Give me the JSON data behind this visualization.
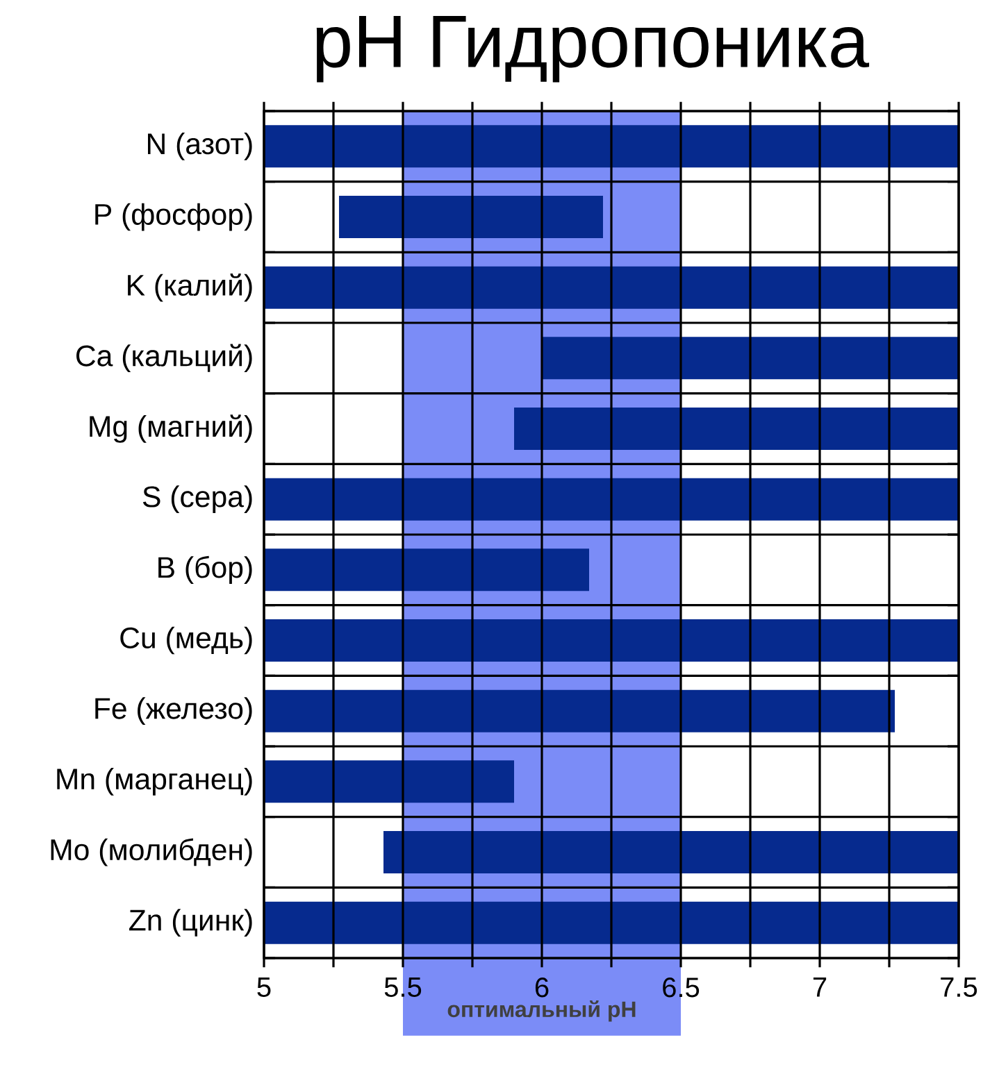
{
  "chart_data": {
    "type": "bar",
    "orientation": "horizontal",
    "title": "pH Гидропоника",
    "categories": [
      "N (азот)",
      "P (фосфор)",
      "K (калий)",
      "Ca (кальций)",
      "Mg (магний)",
      "S (сера)",
      "B (бор)",
      "Cu (медь)",
      "Fe (железо)",
      "Mn (марганец)",
      "Mo (молибден)",
      "Zn (цинк)"
    ],
    "base": [
      5,
      5.27,
      5,
      6,
      5.9,
      5,
      5,
      5,
      5,
      5,
      5.43,
      5
    ],
    "values": [
      2.5,
      0.95,
      2.5,
      1.5,
      1.6,
      2.5,
      1.17,
      2.5,
      2.27,
      0.9,
      2.07,
      2.5
    ],
    "color": "#062a8e",
    "xlim": [
      5,
      7.5
    ],
    "xticks": [
      5,
      {
        "value": 5.25,
        "label": null
      },
      5.5,
      {
        "value": 5.75,
        "label": null
      },
      6,
      {
        "value": 6.25,
        "label": null
      },
      6.5,
      {
        "value": 6.75,
        "label": null
      },
      7,
      {
        "value": 7.25,
        "label": null
      },
      7.5
    ],
    "bands": [
      {
        "axis": "x",
        "from": 5.5,
        "to": 6.5,
        "label": "оптимальный pH",
        "color": "#7b8cf7"
      }
    ],
    "grid": true
  }
}
